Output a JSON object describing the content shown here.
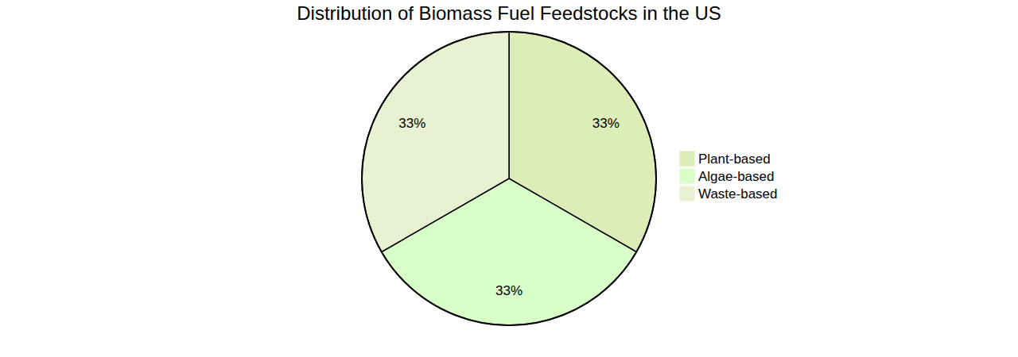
{
  "chart_data": {
    "type": "pie",
    "title": "Distribution of Biomass Fuel Feedstocks in the US",
    "categories": [
      "Plant-based",
      "Algae-based",
      "Waste-based"
    ],
    "values": [
      33,
      33,
      33
    ],
    "value_labels": [
      "33%",
      "33%",
      "33%"
    ],
    "colors": [
      "#ddedb8",
      "#d9ffc8",
      "#e8f2d2"
    ],
    "data_labels": true,
    "legend": "right"
  }
}
